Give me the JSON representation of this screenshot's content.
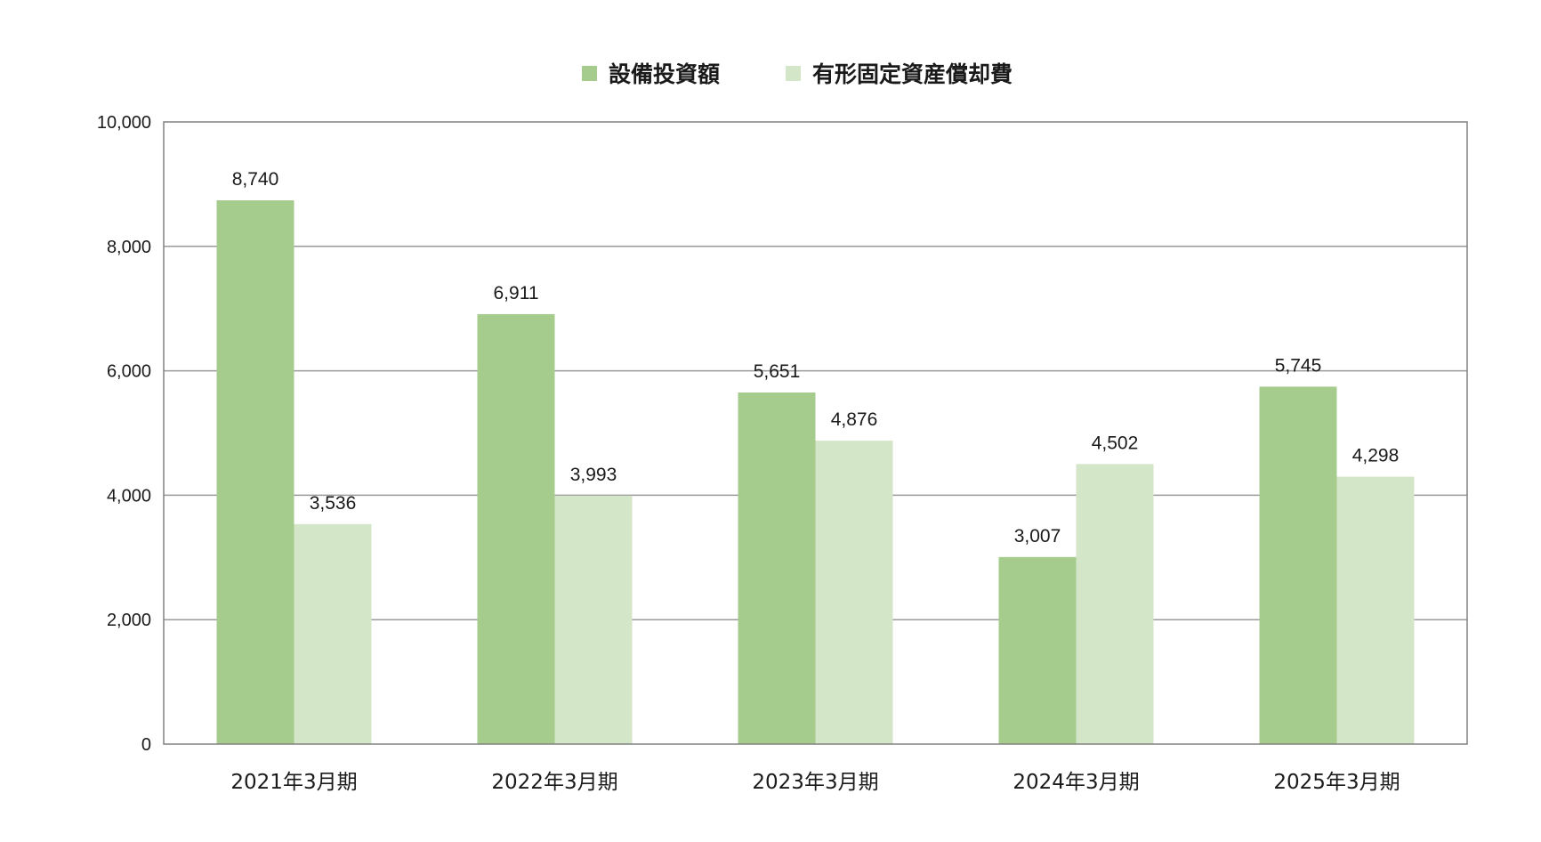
{
  "chart_data": {
    "type": "bar",
    "title": "",
    "xlabel": "",
    "ylabel": "",
    "categories": [
      "2021年3月期",
      "2022年3月期",
      "2023年3月期",
      "2024年3月期",
      "2025年3月期"
    ],
    "series": [
      {
        "name": "設備投資額",
        "values": [
          8740,
          6911,
          5651,
          3007,
          5745
        ],
        "color": "#a5cb8d"
      },
      {
        "name": "有形固定資産償却費",
        "values": [
          3536,
          3993,
          4876,
          4502,
          4298
        ],
        "color": "#d3e6c8"
      }
    ],
    "ylim": [
      0,
      10000
    ],
    "yticks": [
      0,
      2000,
      4000,
      6000,
      8000,
      10000
    ],
    "ytick_labels": [
      "0",
      "2,000",
      "4,000",
      "6,000",
      "8,000",
      "10,000"
    ],
    "data_labels": [
      [
        "8,740",
        "6,911",
        "5,651",
        "3,007",
        "5,745"
      ],
      [
        "3,536",
        "3,993",
        "4,876",
        "4,502",
        "4,298"
      ]
    ],
    "grid": true,
    "legend_position": "top-center",
    "colors": {
      "grid": "#9a9a9a",
      "axis": "#808080",
      "text": "#1a1a1a"
    }
  }
}
